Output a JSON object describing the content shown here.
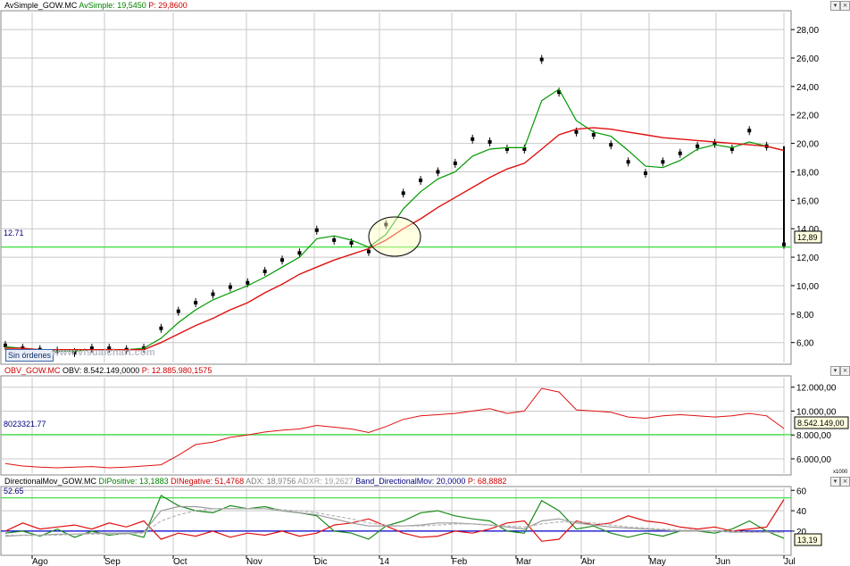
{
  "panels": {
    "price": {
      "header": [
        {
          "text": "AvSimple_GOW.MC",
          "color": "#000000"
        },
        {
          "text": "AvSimple: 19,5450",
          "color": "#008000"
        },
        {
          "text": "P: 29,8600",
          "color": "#cc0000"
        }
      ],
      "level_label": "12.71",
      "last_value": "12,89"
    },
    "obv": {
      "header": [
        {
          "text": "OBV_GOW.MC",
          "color": "#cc0000"
        },
        {
          "text": "OBV: 8.542.149,0000",
          "color": "#000000"
        },
        {
          "text": "P: 12.885.980,1575",
          "color": "#cc0000"
        }
      ],
      "level_label": "8023321.77",
      "last_value": "8.542.149,00",
      "scale_tag": "x1000"
    },
    "dmi": {
      "header": [
        {
          "text": "DirectionalMov_GOW.MC",
          "color": "#000000"
        },
        {
          "text": "DIPositive: 13,1883",
          "color": "#008000"
        },
        {
          "text": "DINegative: 51,4768",
          "color": "#cc0000"
        },
        {
          "text": "ADX: 18,9756",
          "color": "#808080"
        },
        {
          "text": "ADXR: 19,2627",
          "color": "#a0a0a0"
        },
        {
          "text": "Band_DirectionalMov: 20,0000",
          "color": "#000080"
        },
        {
          "text": "P: 68,8882",
          "color": "#cc0000"
        }
      ],
      "level_label": "52.65",
      "last_value": "13,19"
    }
  },
  "buttons": {
    "orders": "Sin órdenes"
  },
  "watermark": "www.visualchart.com",
  "colors": {
    "sma_short": "#009900",
    "sma_long": "#e01010",
    "level": "#33dd33",
    "band": "#0000cc",
    "grid": "#c8c8c8"
  },
  "chart_data": [
    {
      "type": "line",
      "title": "AvSimple_GOW.MC",
      "ylim": [
        4.6,
        29.2
      ],
      "yticks": [
        "6,00",
        "8,00",
        "10,00",
        "12,00",
        "14,00",
        "16,00",
        "18,00",
        "20,00",
        "22,00",
        "24,00",
        "26,00",
        "28,00"
      ],
      "xticks": [
        "Ago",
        "Sep",
        "Oct",
        "Nov",
        "Dic",
        "14",
        "Feb",
        "Mar",
        "Abr",
        "May",
        "Jun",
        "Jul"
      ],
      "hline": 12.71,
      "series": [
        {
          "name": "Price",
          "values": [
            5.8,
            5.6,
            5.5,
            5.4,
            5.3,
            5.6,
            5.6,
            5.5,
            5.6,
            7.0,
            8.2,
            8.8,
            9.4,
            9.9,
            10.2,
            11.0,
            11.8,
            12.3,
            13.9,
            13.2,
            13.0,
            12.4,
            14.3,
            16.5,
            17.4,
            18.0,
            18.6,
            20.3,
            20.1,
            19.6,
            19.6,
            25.9,
            23.6,
            20.8,
            20.6,
            19.9,
            18.7,
            17.9,
            18.7,
            19.3,
            19.8,
            20.0,
            19.6,
            20.9,
            19.8,
            12.9
          ]
        },
        {
          "name": "SMA short",
          "values": [
            5.7,
            5.6,
            5.5,
            5.4,
            5.4,
            5.5,
            5.5,
            5.5,
            5.6,
            6.3,
            7.4,
            8.3,
            9.0,
            9.5,
            10.0,
            10.6,
            11.3,
            12.0,
            13.3,
            13.5,
            13.2,
            12.7,
            13.6,
            15.4,
            16.6,
            17.5,
            18.0,
            19.1,
            19.6,
            19.7,
            19.7,
            23.0,
            23.8,
            21.6,
            20.8,
            20.5,
            19.5,
            18.4,
            18.3,
            18.8,
            19.6,
            19.9,
            19.7,
            20.1,
            19.8,
            19.5
          ]
        },
        {
          "name": "SMA long",
          "values": [
            5.6,
            5.6,
            5.5,
            5.5,
            5.5,
            5.5,
            5.5,
            5.5,
            5.5,
            6.0,
            6.6,
            7.2,
            7.7,
            8.3,
            8.8,
            9.5,
            10.1,
            10.8,
            11.3,
            11.8,
            12.2,
            12.6,
            13.2,
            14.0,
            14.7,
            15.5,
            16.2,
            16.9,
            17.6,
            18.2,
            18.6,
            19.6,
            20.6,
            21.0,
            21.1,
            21.0,
            20.8,
            20.6,
            20.4,
            20.3,
            20.2,
            20.1,
            20.0,
            19.9,
            19.8,
            19.5
          ]
        }
      ]
    },
    {
      "type": "line",
      "title": "OBV_GOW.MC",
      "ylim": [
        4800,
        12800
      ],
      "yticks": [
        "6.000,00",
        "8.000,00",
        "10.000,00",
        "12.000,00"
      ],
      "hline": 8023.32,
      "series": [
        {
          "name": "OBV",
          "values": [
            5600,
            5400,
            5300,
            5250,
            5300,
            5350,
            5250,
            5300,
            5400,
            5500,
            6300,
            7200,
            7400,
            7800,
            8000,
            8250,
            8400,
            8500,
            8800,
            8650,
            8500,
            8200,
            8700,
            9300,
            9600,
            9700,
            9800,
            10000,
            10200,
            9800,
            10000,
            11900,
            11600,
            10100,
            10000,
            9900,
            9500,
            9400,
            9600,
            9700,
            9600,
            9500,
            9600,
            9800,
            9600,
            8542
          ]
        }
      ]
    },
    {
      "type": "line",
      "title": "DirectionalMov_GOW.MC",
      "ylim": [
        -2,
        62
      ],
      "yticks": [
        "20",
        "40",
        "60"
      ],
      "hline": 52.65,
      "band": 20,
      "series": [
        {
          "name": "DIPositive",
          "values": [
            18,
            20,
            15,
            22,
            14,
            20,
            16,
            18,
            14,
            55,
            45,
            40,
            38,
            45,
            42,
            44,
            40,
            38,
            35,
            20,
            18,
            12,
            25,
            30,
            38,
            40,
            35,
            32,
            30,
            20,
            18,
            50,
            40,
            22,
            25,
            18,
            14,
            18,
            15,
            20,
            20,
            18,
            22,
            30,
            20,
            13
          ]
        },
        {
          "name": "DINegative",
          "values": [
            20,
            28,
            22,
            24,
            26,
            22,
            28,
            24,
            30,
            12,
            18,
            15,
            20,
            14,
            18,
            16,
            20,
            15,
            18,
            26,
            28,
            32,
            25,
            18,
            14,
            15,
            20,
            18,
            22,
            28,
            30,
            10,
            12,
            30,
            26,
            28,
            35,
            30,
            28,
            24,
            22,
            24,
            20,
            22,
            24,
            51
          ]
        },
        {
          "name": "ADX",
          "values": [
            15,
            16,
            16,
            17,
            17,
            18,
            18,
            18,
            19,
            40,
            44,
            44,
            42,
            42,
            42,
            42,
            40,
            38,
            36,
            32,
            28,
            25,
            25,
            25,
            26,
            28,
            28,
            27,
            26,
            24,
            22,
            30,
            32,
            28,
            26,
            24,
            23,
            22,
            21,
            20,
            20,
            20,
            19,
            19,
            19,
            19
          ]
        },
        {
          "name": "ADXR",
          "values": [
            16,
            16,
            16,
            16,
            17,
            17,
            17,
            17,
            18,
            30,
            36,
            40,
            42,
            42,
            42,
            42,
            41,
            40,
            38,
            35,
            32,
            28,
            26,
            25,
            25,
            26,
            27,
            27,
            26,
            25,
            24,
            27,
            29,
            29,
            28,
            26,
            24,
            23,
            22,
            21,
            21,
            20,
            20,
            19,
            19,
            19
          ]
        }
      ]
    }
  ]
}
